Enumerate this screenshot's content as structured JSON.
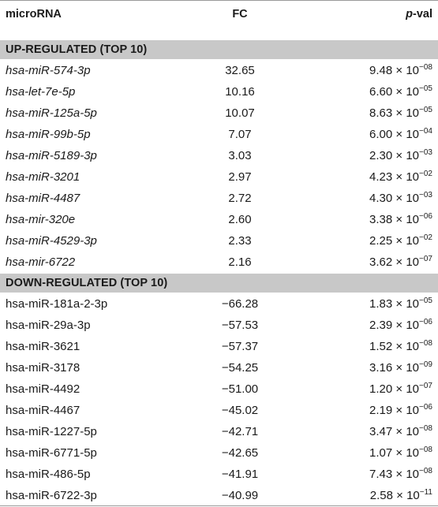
{
  "table": {
    "headers": {
      "mirna": "microRNA",
      "fc": "FC",
      "pval_italic": "p",
      "pval_rest": "-val"
    },
    "sections": [
      {
        "title": "UP-REGULATED (TOP 10)",
        "italic_names": true,
        "rows": [
          {
            "mirna": "hsa-miR-574-3p",
            "fc": "32.65",
            "mantissa": "9.48",
            "exp": "−08"
          },
          {
            "mirna": "hsa-let-7e-5p",
            "fc": "10.16",
            "mantissa": "6.60",
            "exp": "−05"
          },
          {
            "mirna": "hsa-miR-125a-5p",
            "fc": "10.07",
            "mantissa": "8.63",
            "exp": "−05"
          },
          {
            "mirna": "hsa-miR-99b-5p",
            "fc": "7.07",
            "mantissa": "6.00",
            "exp": "−04"
          },
          {
            "mirna": "hsa-miR-5189-3p",
            "fc": "3.03",
            "mantissa": "2.30",
            "exp": "−03"
          },
          {
            "mirna": "hsa-miR-3201",
            "fc": "2.97",
            "mantissa": "4.23",
            "exp": "−02"
          },
          {
            "mirna": "hsa-miR-4487",
            "fc": "2.72",
            "mantissa": "4.30",
            "exp": "−03"
          },
          {
            "mirna": "hsa-mir-320e",
            "fc": "2.60",
            "mantissa": "3.38",
            "exp": "−06"
          },
          {
            "mirna": "hsa-miR-4529-3p",
            "fc": "2.33",
            "mantissa": "2.25",
            "exp": "−02"
          },
          {
            "mirna": "hsa-mir-6722",
            "fc": "2.16",
            "mantissa": "3.62",
            "exp": "−07"
          }
        ]
      },
      {
        "title": "DOWN-REGULATED (TOP 10)",
        "italic_names": false,
        "rows": [
          {
            "mirna": "hsa-miR-181a-2-3p",
            "fc": "−66.28",
            "mantissa": "1.83",
            "exp": "−05"
          },
          {
            "mirna": "hsa-miR-29a-3p",
            "fc": "−57.53",
            "mantissa": "2.39",
            "exp": "−06"
          },
          {
            "mirna": "hsa-miR-3621",
            "fc": "−57.37",
            "mantissa": "1.52",
            "exp": "−08"
          },
          {
            "mirna": "hsa-miR-3178",
            "fc": "−54.25",
            "mantissa": "3.16",
            "exp": "−09"
          },
          {
            "mirna": "hsa-miR-4492",
            "fc": "−51.00",
            "mantissa": "1.20",
            "exp": "−07"
          },
          {
            "mirna": "hsa-miR-4467",
            "fc": "−45.02",
            "mantissa": "2.19",
            "exp": "−06"
          },
          {
            "mirna": "hsa-miR-1227-5p",
            "fc": "−42.71",
            "mantissa": "3.47",
            "exp": "−08"
          },
          {
            "mirna": "hsa-miR-6771-5p",
            "fc": "−42.65",
            "mantissa": "1.07",
            "exp": "−08"
          },
          {
            "mirna": "hsa-miR-486-5p",
            "fc": "−41.91",
            "mantissa": "7.43",
            "exp": "−08"
          },
          {
            "mirna": "hsa-miR-6722-3p",
            "fc": "−40.99",
            "mantissa": "2.58",
            "exp": "−11"
          }
        ]
      }
    ],
    "times_symbol": "×",
    "base": "10"
  }
}
